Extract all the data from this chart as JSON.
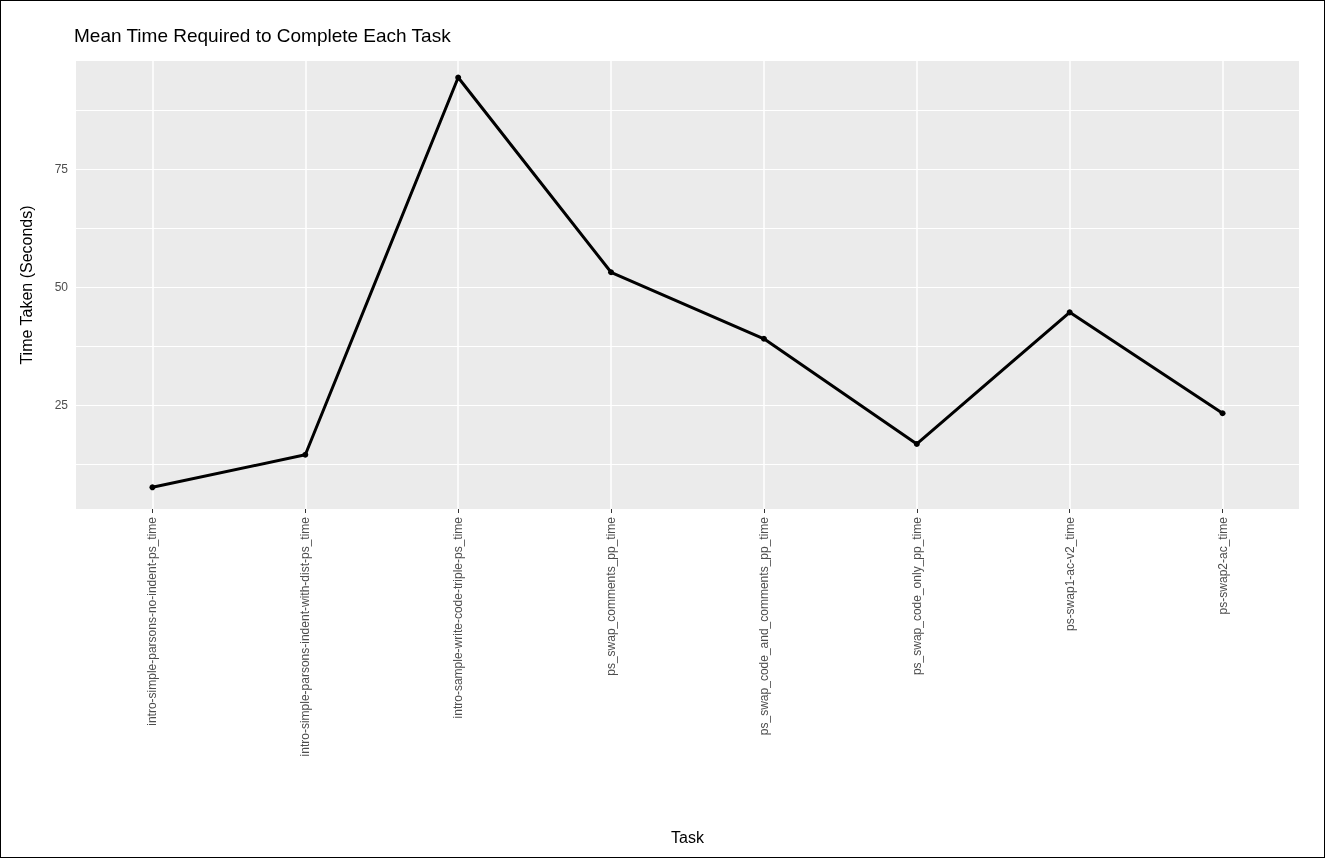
{
  "chart_data": {
    "type": "line",
    "title": "Mean Time Required to Complete Each Task",
    "xlabel": "Task",
    "ylabel": "Time Taken (Seconds)",
    "categories": [
      "intro-simple-parsons-no-indent-ps_time",
      "intro-simple-parsons-indent-with-dist-ps_time",
      "intro-sample-write-code-triple-ps_time",
      "ps_swap_comments_pp_time",
      "ps_swap_code_and_comments_pp_time",
      "ps_swap_code_only_pp_time",
      "ps-swap1-ac-v2_time",
      "ps-swap2-ac_time"
    ],
    "series": [
      {
        "color": "#000000",
        "values": [
          7.6,
          14.5,
          94.5,
          53.2,
          39.1,
          16.8,
          44.7,
          23.3
        ]
      }
    ],
    "ylim": [
      3,
      98
    ],
    "yticks": [
      {
        "value": 12.5,
        "label": null
      },
      25,
      {
        "value": 37.5,
        "label": null
      },
      50,
      {
        "value": 62.5,
        "label": null
      },
      75,
      {
        "value": 87.5,
        "label": null
      }
    ],
    "grid": true,
    "marker": "circle",
    "line_style": "solid"
  }
}
